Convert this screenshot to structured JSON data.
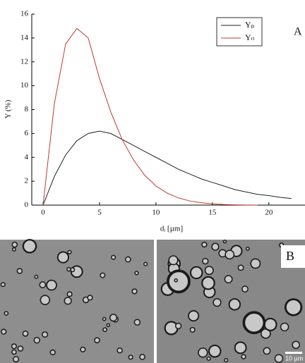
{
  "chart_data": {
    "type": "line",
    "x_label": "dᵢ [µm]",
    "y_label": "Y (%)",
    "panel_label": "A",
    "x": [
      0,
      1,
      2,
      3,
      4,
      5,
      6,
      7,
      8,
      9,
      10,
      11,
      12,
      13,
      14,
      15,
      16,
      17,
      18,
      19,
      20,
      21,
      22
    ],
    "series": [
      {
        "name": "Yₚ",
        "color": "#222222",
        "values": [
          0,
          2.4,
          4.2,
          5.4,
          6.0,
          6.2,
          6.0,
          5.5,
          5.0,
          4.5,
          4.0,
          3.5,
          3.0,
          2.6,
          2.2,
          1.9,
          1.6,
          1.3,
          1.1,
          0.9,
          0.8,
          0.65,
          0.55
        ]
      },
      {
        "name": "Yₙ",
        "color": "#c0392b",
        "values": [
          0,
          8.5,
          13.5,
          14.8,
          14.0,
          10.6,
          7.8,
          5.5,
          3.8,
          2.5,
          1.6,
          1.0,
          0.6,
          0.35,
          0.2,
          0.1,
          0.05,
          0.02,
          0.01,
          0,
          null,
          null,
          null
        ]
      }
    ],
    "xlim": [
      -1,
      23.2
    ],
    "ylim": [
      0,
      16
    ],
    "xticks": [
      0,
      5,
      10,
      15,
      20
    ],
    "yticks": [
      0,
      2,
      4,
      6,
      8,
      10,
      12,
      14,
      16
    ],
    "legend": "top-right"
  },
  "image_panel": {
    "label": "B",
    "scale_bar": "10 µm"
  }
}
